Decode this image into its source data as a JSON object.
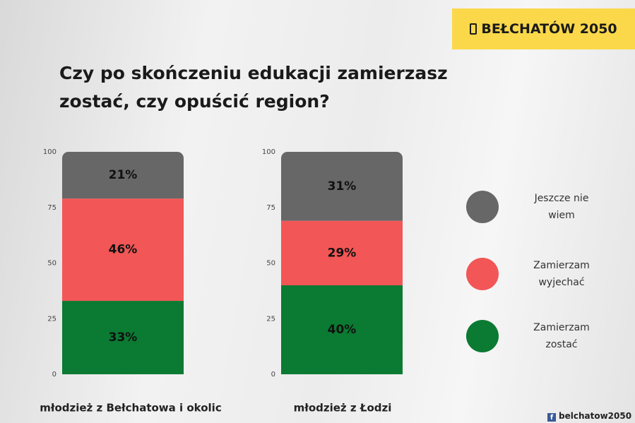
{
  "chart_data": {
    "type": "stacked_bar",
    "title": "Czy po skończeniu edukacji zamierzasz zostać, czy opuścić region?",
    "brand": "BEŁCHATÓW 2050",
    "footer": "belchatow2050",
    "categories": [
      "młodzież z Bełchatowa i okolic",
      "młodzież z Łodzi"
    ],
    "series": [
      {
        "name": "Zamierzam zostać",
        "color": "#0b7a32",
        "values": [
          33,
          40
        ],
        "value_labels": [
          "33%",
          "40%"
        ]
      },
      {
        "name": "Zamierzam wyjechać",
        "color": "#f25656",
        "values": [
          46,
          29
        ],
        "value_labels": [
          "46%",
          "29%"
        ]
      },
      {
        "name": "Jeszcze nie wiem",
        "color": "#676767",
        "values": [
          21,
          31
        ],
        "value_labels": [
          "21%",
          "31%"
        ]
      }
    ],
    "ylim": [
      0,
      100
    ],
    "yticks": [
      0,
      25,
      50,
      75,
      100
    ]
  }
}
